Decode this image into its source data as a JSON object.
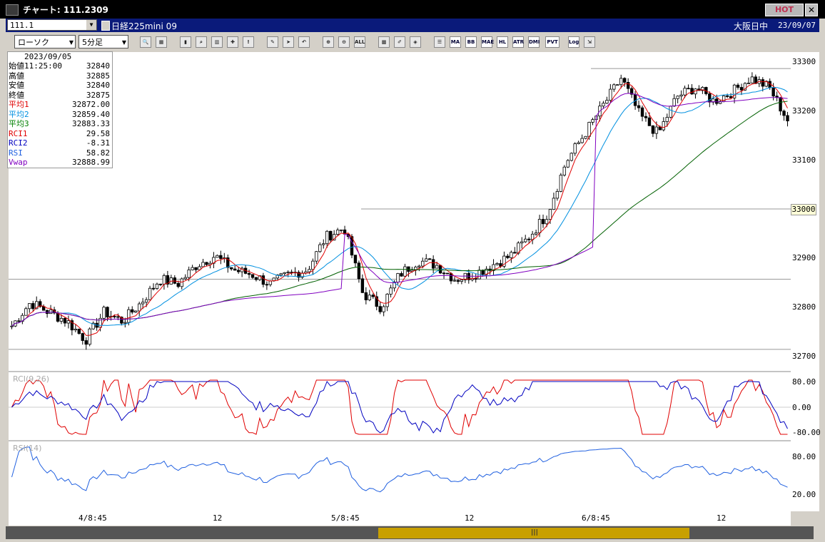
{
  "window": {
    "title": "チャート: 111.2309",
    "hot": "HOT",
    "close": "✕"
  },
  "infobar": {
    "symbol": "111.1",
    "name": "日経225mini 09",
    "exchange": "大阪日中",
    "date": "23/09/07"
  },
  "toolbar": {
    "chart_type": "ローソク",
    "interval": "5分足",
    "tools": [
      "MA",
      "BB",
      "MAE",
      "HL",
      "ATR",
      "DMI",
      "PVT",
      "Log"
    ]
  },
  "ohlc_box": {
    "datetime": "2023/09/05 11:25:00",
    "rows": [
      {
        "label": "始値",
        "value": "32840",
        "color": "#000000"
      },
      {
        "label": "高値",
        "value": "32885",
        "color": "#000000"
      },
      {
        "label": "安値",
        "value": "32840",
        "color": "#000000"
      },
      {
        "label": "終値",
        "value": "32875",
        "color": "#000000"
      },
      {
        "label": "平均1",
        "value": "32872.00",
        "color": "#e00000"
      },
      {
        "label": "平均2",
        "value": "32859.40",
        "color": "#0090e0"
      },
      {
        "label": "平均3",
        "value": "32883.33",
        "color": "#008000"
      },
      {
        "label": "RCI1",
        "value": "29.58",
        "color": "#e00000"
      },
      {
        "label": "RCI2",
        "value": "-8.31",
        "color": "#0000c0"
      },
      {
        "label": "RSI",
        "value": "58.82",
        "color": "#2060e0"
      },
      {
        "label": "Vwap",
        "value": "32888.99",
        "color": "#8000c0"
      }
    ]
  },
  "price_axis": {
    "labels": [
      "33300",
      "33200",
      "33100",
      "33000",
      "32900",
      "32800",
      "32700"
    ],
    "current": "33000"
  },
  "rci_axis": {
    "labels": [
      "80.00",
      "0.00",
      "-80.00"
    ]
  },
  "rsi_axis": {
    "labels": [
      "80.00",
      "20.00"
    ]
  },
  "panels": {
    "rci_label": "RCI(9,26)",
    "rsi_label": "RSI(14)"
  },
  "time_axis": {
    "labels": [
      "4/8:45",
      "12",
      "5/8:45",
      "12",
      "6/8:45",
      "12"
    ]
  },
  "colors": {
    "ma1": "#e00000",
    "ma2": "#0090e0",
    "ma3": "#006000",
    "vwap": "#8000c0",
    "rci1": "#e00000",
    "rci2": "#0000c0",
    "rsi": "#2060e0"
  },
  "chart_data": {
    "type": "candlestick",
    "ylim": [
      32680,
      33320
    ],
    "x_ticks": [
      "4/8:45",
      "12",
      "5/8:45",
      "12",
      "6/8:45",
      "12"
    ],
    "close_path": [
      32750,
      32800,
      32780,
      32760,
      32720,
      32780,
      32760,
      32800,
      32850,
      32840,
      32880,
      32900,
      32870,
      32860,
      32840,
      32860,
      32870,
      32940,
      32960,
      32820,
      32790,
      32860,
      32890,
      32880,
      32850,
      32860,
      32880,
      32900,
      32940,
      32990,
      33100,
      33160,
      33220,
      33280,
      33200,
      33160,
      33240,
      33260,
      33230,
      33250,
      33280,
      33260,
      33190
    ],
    "rci_y_range": [
      -100,
      100
    ],
    "rsi_y_range": [
      0,
      100
    ]
  }
}
